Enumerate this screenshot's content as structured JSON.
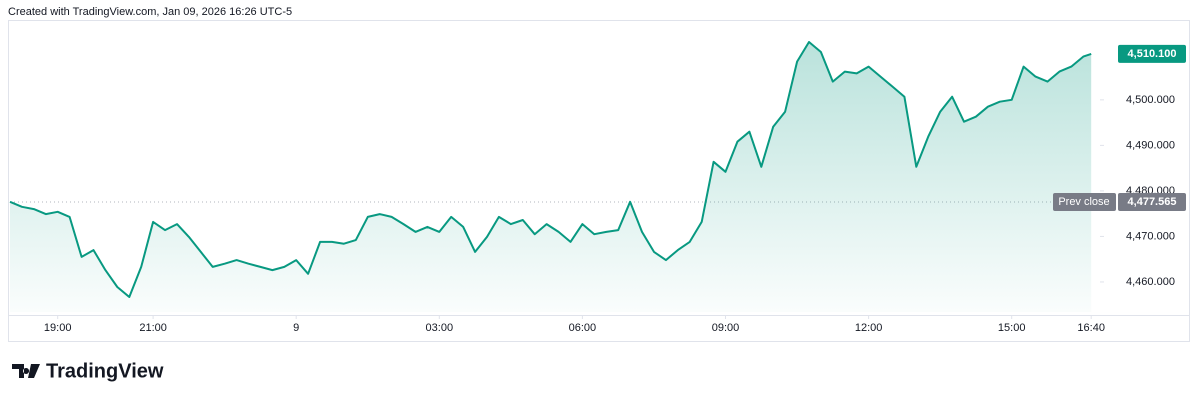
{
  "credit": "Created with TradingView.com, Jan 09, 2026 16:26 UTC-5",
  "brand": "TradingView",
  "chart_data": {
    "type": "area",
    "color": "#089981",
    "x": [
      "18:00",
      "18:15",
      "18:30",
      "18:45",
      "19:00",
      "19:15",
      "19:30",
      "19:45",
      "20:00",
      "20:15",
      "20:30",
      "20:45",
      "21:00",
      "21:15",
      "21:30",
      "21:45",
      "22:00",
      "22:15",
      "22:30",
      "22:45",
      "23:00",
      "23:15",
      "23:30",
      "23:45",
      "00:00",
      "00:15",
      "00:30",
      "00:45",
      "01:00",
      "01:15",
      "01:30",
      "01:45",
      "02:00",
      "02:15",
      "02:30",
      "02:45",
      "03:00",
      "03:15",
      "03:30",
      "03:45",
      "04:00",
      "04:15",
      "04:30",
      "04:45",
      "05:00",
      "05:15",
      "05:30",
      "05:45",
      "06:00",
      "06:15",
      "06:30",
      "06:45",
      "07:00",
      "07:15",
      "07:30",
      "07:45",
      "08:00",
      "08:15",
      "08:30",
      "08:45",
      "09:00",
      "09:15",
      "09:30",
      "09:45",
      "10:00",
      "10:15",
      "10:30",
      "10:45",
      "11:00",
      "11:15",
      "11:30",
      "11:45",
      "12:00",
      "12:15",
      "12:30",
      "12:45",
      "13:00",
      "13:15",
      "13:30",
      "13:45",
      "14:00",
      "14:15",
      "14:30",
      "14:45",
      "15:00",
      "15:15",
      "15:30",
      "15:45",
      "16:00",
      "16:15",
      "16:30",
      "16:40"
    ],
    "values": [
      4477.6,
      4476.5,
      4476.0,
      4474.9,
      4475.4,
      4474.3,
      4465.5,
      4467.0,
      4462.6,
      4458.9,
      4456.7,
      4463.3,
      4473.2,
      4471.4,
      4472.7,
      4469.9,
      4466.6,
      4463.3,
      4464.0,
      4464.8,
      4464.0,
      4463.3,
      4462.6,
      4463.3,
      4464.8,
      4461.8,
      4468.8,
      4468.8,
      4468.4,
      4469.2,
      4474.3,
      4474.9,
      4474.3,
      4472.7,
      4471.0,
      4472.1,
      4471.0,
      4474.3,
      4472.1,
      4466.6,
      4469.9,
      4474.3,
      4472.7,
      4473.6,
      4470.5,
      4472.7,
      4471.0,
      4468.8,
      4472.7,
      4470.5,
      4471.0,
      4471.4,
      4477.6,
      4471.0,
      4466.6,
      4464.8,
      4467.0,
      4468.8,
      4473.2,
      4486.4,
      4484.2,
      4490.8,
      4493.0,
      4485.3,
      4494.1,
      4497.4,
      4508.4,
      4512.7,
      4510.5,
      4504.0,
      4506.2,
      4505.8,
      4507.3,
      4505.1,
      4502.9,
      4500.7,
      4485.3,
      4491.9,
      4497.4,
      4500.7,
      4495.2,
      4496.3,
      4498.5,
      4499.6,
      4500.0,
      4507.3,
      4505.1,
      4504.0,
      4506.2,
      4507.3,
      4509.5,
      4510.1
    ],
    "xticks": [
      "19:00",
      "21:00",
      {
        "value": "00:00",
        "label": "9"
      },
      "03:00",
      "06:00",
      "09:00",
      "12:00",
      "15:00",
      "16:40"
    ],
    "ylim": [
      4453.4,
      4517.1
    ],
    "yticks": [
      {
        "value": 4460,
        "label": "4,460.000"
      },
      {
        "value": 4470,
        "label": "4,470.000"
      },
      {
        "value": 4480,
        "label": "4,480.000"
      },
      {
        "value": 4490,
        "label": "4,490.000"
      },
      {
        "value": 4500,
        "label": "4,500.000"
      }
    ],
    "last_price": {
      "value": 4510.1,
      "label": "4,510.100"
    },
    "prev_close": {
      "name": "Prev close",
      "value": 4477.565,
      "label": "4,477.565"
    }
  }
}
